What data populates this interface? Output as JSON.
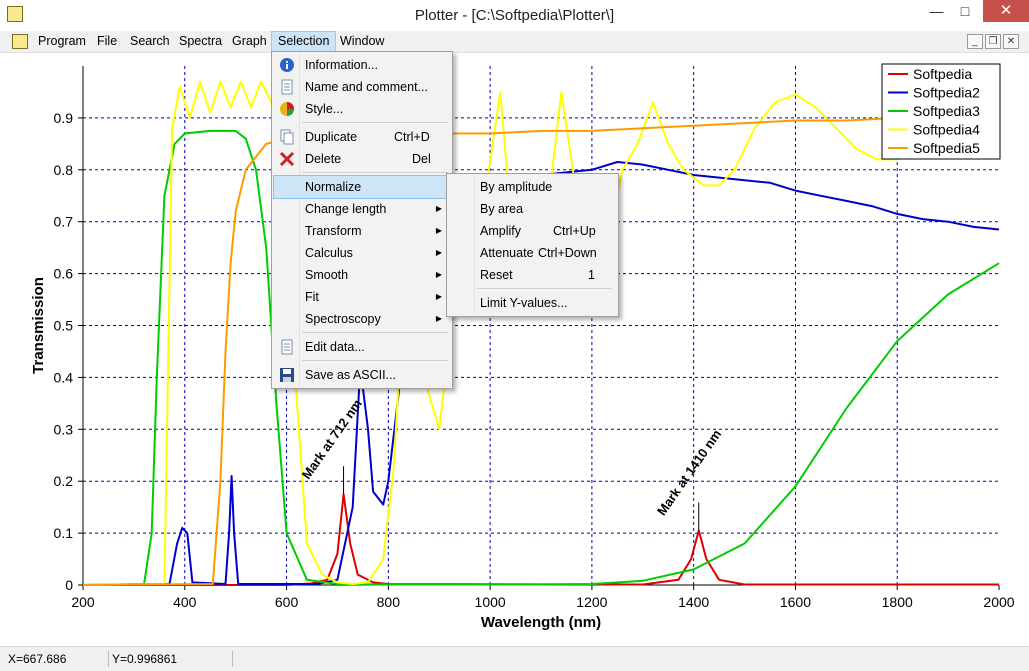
{
  "window": {
    "title": "Plotter - [C:\\Softpedia\\Plotter\\]",
    "min_glyph": "—",
    "max_glyph": "□",
    "close_glyph": "✕"
  },
  "menubar": {
    "items": [
      "Program",
      "File",
      "Search",
      "Spectra",
      "Graph",
      "Selection",
      "Window"
    ],
    "active": "Selection"
  },
  "mdi_controls": {
    "min": "_",
    "restore": "❐",
    "close": "✕"
  },
  "selection_menu": {
    "items": [
      {
        "label": "Information...",
        "icon": "info-icon",
        "shortcut": ""
      },
      {
        "label": "Name and comment...",
        "icon": "document-icon",
        "shortcut": ""
      },
      {
        "label": "Style...",
        "icon": "palette-icon",
        "shortcut": ""
      },
      {
        "label": "Duplicate",
        "icon": "copy-icon",
        "shortcut": "Ctrl+D"
      },
      {
        "label": "Delete",
        "icon": "delete-x-icon",
        "shortcut": "Del"
      },
      {
        "label": "Normalize",
        "submenu": true,
        "highlighted": true
      },
      {
        "label": "Change length",
        "submenu": true
      },
      {
        "label": "Transform",
        "submenu": true
      },
      {
        "label": "Calculus",
        "submenu": true
      },
      {
        "label": "Smooth",
        "submenu": true
      },
      {
        "label": "Fit",
        "submenu": true
      },
      {
        "label": "Spectroscopy",
        "submenu": true
      },
      {
        "label": "Edit data...",
        "icon": "document-icon",
        "shortcut": ""
      },
      {
        "label": "Save as ASCII...",
        "icon": "floppy-disk-icon",
        "shortcut": ""
      }
    ]
  },
  "normalize_submenu": {
    "items": [
      {
        "label": "By amplitude",
        "shortcut": ""
      },
      {
        "label": "By area",
        "shortcut": ""
      },
      {
        "label": "Amplify",
        "shortcut": "Ctrl+Up"
      },
      {
        "label": "Attenuate",
        "shortcut": "Ctrl+Down"
      },
      {
        "label": "Reset",
        "shortcut": "1"
      },
      {
        "label": "Limit Y-values...",
        "shortcut": ""
      }
    ]
  },
  "statusbar": {
    "x": "X=667.686",
    "y": "Y=0.996861"
  },
  "chart_data": {
    "type": "line",
    "xlabel": "Wavelength (nm)",
    "ylabel": "Transmission",
    "xlim": [
      200,
      2000
    ],
    "ylim": [
      0,
      1.0
    ],
    "xticks": [
      200,
      400,
      600,
      800,
      1000,
      1200,
      1400,
      1600,
      1800,
      2000
    ],
    "yticks": [
      0,
      0.1,
      0.2,
      0.3,
      0.4,
      0.5,
      0.6,
      0.7,
      0.8,
      0.9
    ],
    "grid": true,
    "legend": "top-right",
    "annotations": [
      {
        "text": "Mark at 712 nm",
        "x": 712,
        "y": 0.175
      },
      {
        "text": "Mark at 1410 nm",
        "x": 1410,
        "y": 0.105
      }
    ],
    "series": [
      {
        "name": "Softpedia",
        "color": "#e00000",
        "x": [
          200,
          600,
          650,
          680,
          700,
          712,
          725,
          740,
          770,
          800,
          1300,
          1370,
          1395,
          1410,
          1425,
          1450,
          1500,
          2000
        ],
        "y": [
          0,
          0,
          0.003,
          0.01,
          0.06,
          0.175,
          0.08,
          0.02,
          0.005,
          0.002,
          0.001,
          0.01,
          0.05,
          0.105,
          0.05,
          0.01,
          0.001,
          0.001
        ]
      },
      {
        "name": "Softpedia2",
        "color": "#0000cc",
        "x": [
          200,
          370,
          385,
          395,
          405,
          415,
          480,
          487,
          492,
          497,
          505,
          660,
          700,
          730,
          745,
          760,
          770,
          790,
          800,
          830,
          850,
          870,
          900,
          950,
          1000,
          1050,
          1100,
          1150,
          1200,
          1250,
          1300,
          1350,
          1400,
          1450,
          1500,
          1550,
          1600,
          1650,
          1700,
          1750,
          1800,
          1850,
          1900,
          1950,
          2000
        ],
        "y": [
          0,
          0.002,
          0.08,
          0.11,
          0.1,
          0.005,
          0.002,
          0.1,
          0.21,
          0.1,
          0.002,
          0.002,
          0.01,
          0.15,
          0.42,
          0.3,
          0.18,
          0.155,
          0.2,
          0.45,
          0.55,
          0.6,
          0.65,
          0.72,
          0.76,
          0.78,
          0.79,
          0.795,
          0.8,
          0.815,
          0.81,
          0.8,
          0.79,
          0.785,
          0.78,
          0.775,
          0.76,
          0.75,
          0.74,
          0.73,
          0.715,
          0.705,
          0.7,
          0.69,
          0.685
        ]
      },
      {
        "name": "Softpedia3",
        "color": "#00cc00",
        "x": [
          200,
          320,
          335,
          345,
          360,
          380,
          400,
          450,
          500,
          520,
          540,
          560,
          580,
          600,
          640,
          700,
          800,
          900,
          1000,
          1100,
          1200,
          1300,
          1400,
          1500,
          1600,
          1700,
          1800,
          1900,
          2000
        ],
        "y": [
          0,
          0.002,
          0.1,
          0.4,
          0.75,
          0.85,
          0.87,
          0.875,
          0.875,
          0.86,
          0.8,
          0.65,
          0.35,
          0.1,
          0.01,
          0.002,
          0.001,
          0.001,
          0.001,
          0.001,
          0.002,
          0.008,
          0.03,
          0.08,
          0.19,
          0.34,
          0.47,
          0.56,
          0.62
        ]
      },
      {
        "name": "Softpedia4",
        "color": "#ffff00",
        "x": [
          200,
          360,
          375,
          390,
          410,
          430,
          450,
          470,
          490,
          510,
          530,
          550,
          570,
          590,
          610,
          640,
          670,
          700,
          730,
          760,
          790,
          810,
          830,
          850,
          870,
          900,
          930,
          960,
          990,
          1020,
          1050,
          1080,
          1110,
          1140,
          1170,
          1200,
          1230,
          1260,
          1290,
          1320,
          1350,
          1380,
          1420,
          1450,
          1480,
          1520,
          1560,
          1600,
          1640,
          1680,
          1720,
          1760,
          1800,
          1850,
          1900,
          1950,
          2000
        ],
        "y": [
          0,
          0.002,
          0.88,
          0.96,
          0.9,
          0.97,
          0.91,
          0.97,
          0.92,
          0.97,
          0.92,
          0.97,
          0.93,
          0.9,
          0.5,
          0.08,
          0.02,
          0.005,
          0.002,
          0.005,
          0.05,
          0.22,
          0.55,
          0.7,
          0.4,
          0.3,
          0.55,
          0.6,
          0.75,
          0.95,
          0.6,
          0.52,
          0.7,
          0.95,
          0.75,
          0.7,
          0.65,
          0.8,
          0.85,
          0.93,
          0.85,
          0.8,
          0.77,
          0.77,
          0.8,
          0.88,
          0.93,
          0.945,
          0.92,
          0.88,
          0.84,
          0.82,
          0.82,
          0.84,
          0.87,
          0.9,
          0.93
        ]
      },
      {
        "name": "Softpedia5",
        "color": "#ff9900",
        "x": [
          200,
          455,
          470,
          480,
          490,
          500,
          520,
          560,
          600,
          700,
          800,
          900,
          1000,
          1100,
          1200,
          1300,
          1400,
          1500,
          1600,
          1700,
          1800,
          1900,
          2000
        ],
        "y": [
          0,
          0.002,
          0.2,
          0.45,
          0.62,
          0.72,
          0.8,
          0.85,
          0.86,
          0.865,
          0.865,
          0.87,
          0.87,
          0.875,
          0.875,
          0.88,
          0.885,
          0.89,
          0.895,
          0.895,
          0.9,
          0.9,
          0.9
        ]
      }
    ]
  }
}
